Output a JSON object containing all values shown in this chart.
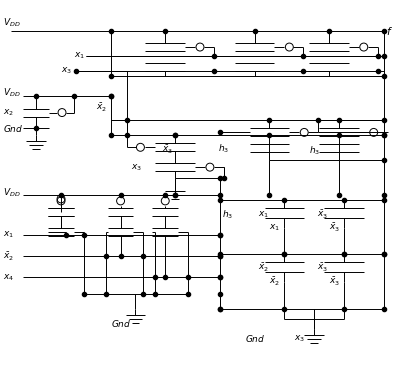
{
  "fig_width": 3.98,
  "fig_height": 3.75,
  "dpi": 100,
  "bg_color": "#ffffff",
  "line_color": "#000000",
  "lw": 0.7,
  "dot_size": 3.0,
  "font_size": 6.5
}
